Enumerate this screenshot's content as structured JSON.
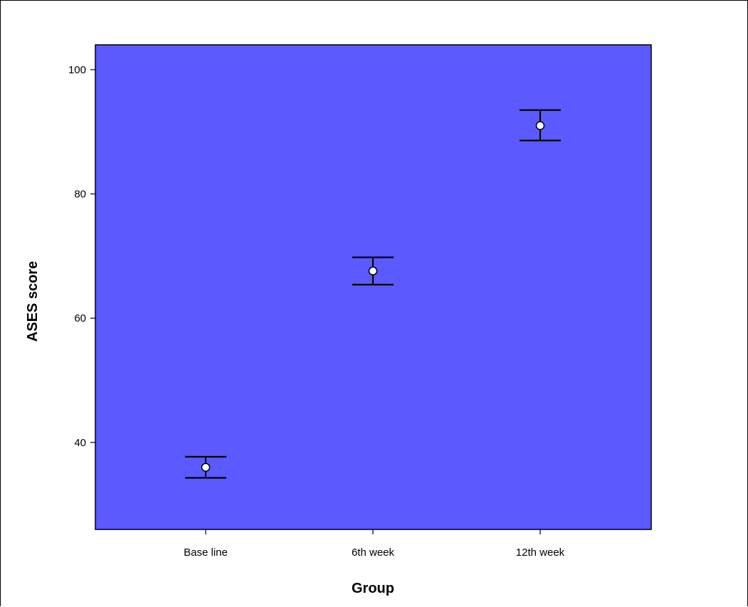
{
  "chart_data": {
    "type": "scatter",
    "subtype": "error-bar",
    "title": "",
    "xlabel": "Group",
    "ylabel": "ASES score",
    "categories": [
      "Base line",
      "6th week",
      "12th week"
    ],
    "series": [
      {
        "mean": [
          36.0,
          67.6,
          91.0
        ],
        "lower": [
          34.3,
          65.4,
          88.6
        ],
        "upper": [
          37.7,
          69.8,
          93.5
        ]
      }
    ],
    "ylim": [
      26,
      104
    ],
    "yticks": [
      40,
      60,
      80,
      100
    ],
    "grid": false,
    "legend": "none",
    "colors": {
      "plot_background": "#5a5aff",
      "marker_fill": "#ffffff",
      "line": "#000000"
    }
  }
}
